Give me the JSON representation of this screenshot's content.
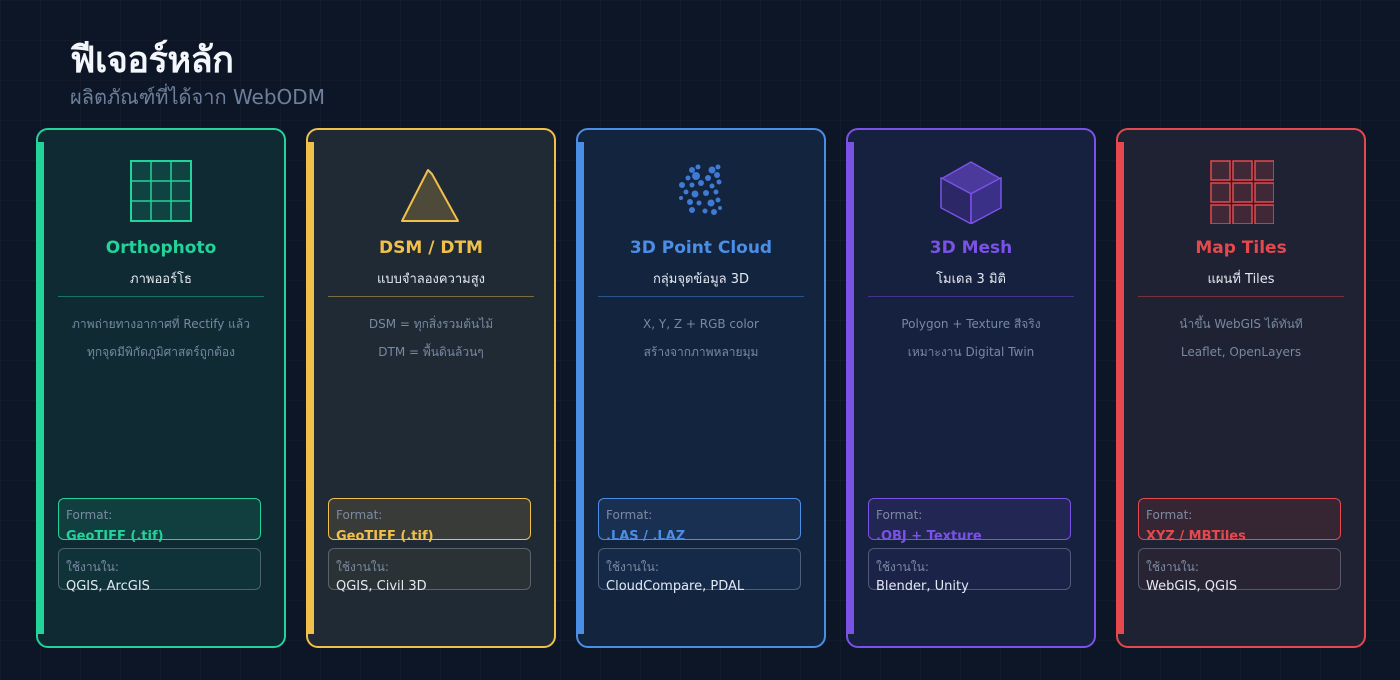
{
  "header": {
    "title": "ฟีเจอร์หลัก",
    "subtitle": "ผลิตภัณฑ์ที่ได้จาก WebODM"
  },
  "cards": [
    {
      "name": "Orthophoto",
      "thai_name": "ภาพออร์โธ",
      "desc": [
        "ภาพถ่ายทางอากาศที่ Rectify แล้ว",
        "ทุกจุดมีพิกัดภูมิศาสตร์ถูกต้อง"
      ],
      "format_label": "Format:",
      "format_value": "GeoTIFF (.tif)",
      "use_label": "ใช้งานใน:",
      "use_value": "QGIS, ArcGIS",
      "color": "#22d39a",
      "icon": "grid-icon"
    },
    {
      "name": "DSM / DTM",
      "thai_name": "แบบจำลองความสูง",
      "desc": [
        "DSM = ทุกสิ่งรวมต้นไม้",
        "DTM = พื้นดินล้วนๆ"
      ],
      "format_label": "Format:",
      "format_value": "GeoTIFF (.tif)",
      "use_label": "ใช้งานใน:",
      "use_value": "QGIS, Civil 3D",
      "color": "#f0c04a",
      "icon": "elevation-icon"
    },
    {
      "name": "3D Point Cloud",
      "thai_name": "กลุ่มจุดข้อมูล 3D",
      "desc": [
        "X, Y, Z + RGB color",
        "สร้างจากภาพหลายมุม"
      ],
      "format_label": "Format:",
      "format_value": ".LAS / .LAZ",
      "use_label": "ใช้งานใน:",
      "use_value": "CloudCompare, PDAL",
      "color": "#4b8ee6",
      "icon": "point-cloud-icon"
    },
    {
      "name": "3D Mesh",
      "thai_name": "โมเดล 3 มิติ",
      "desc": [
        "Polygon + Texture สีจริง",
        "เหมาะงาน Digital Twin"
      ],
      "format_label": "Format:",
      "format_value": ".OBJ + Texture",
      "use_label": "ใช้งานใน:",
      "use_value": "Blender, Unity",
      "color": "#7b52e6",
      "icon": "cube-icon"
    },
    {
      "name": "Map Tiles",
      "thai_name": "แผนที่ Tiles",
      "desc": [
        "นำขึ้น WebGIS ได้ทันที",
        "Leaflet, OpenLayers"
      ],
      "format_label": "Format:",
      "format_value": "XYZ / MBTiles",
      "use_label": "ใช้งานใน:",
      "use_value": "WebGIS, QGIS",
      "color": "#e5484d",
      "icon": "tiles-icon"
    }
  ]
}
